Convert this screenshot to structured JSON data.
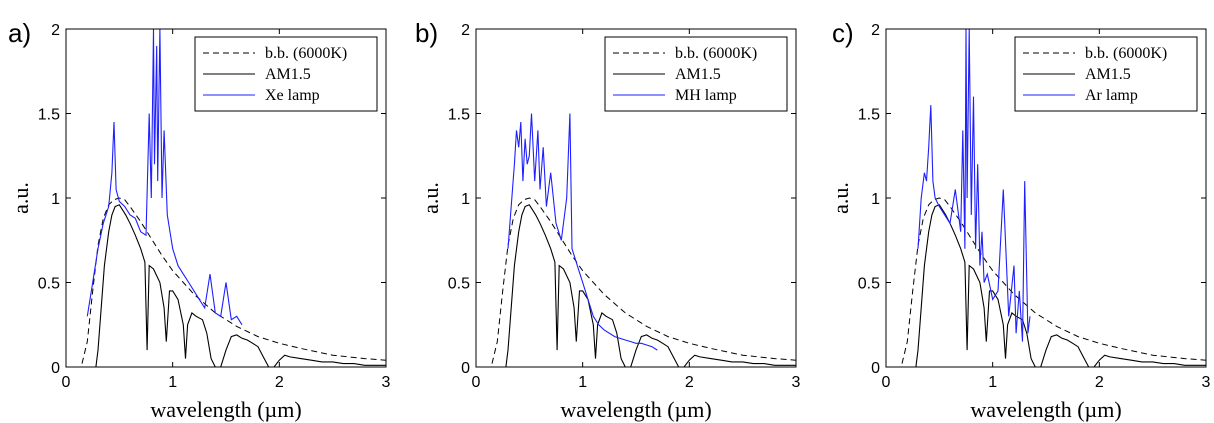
{
  "chart_data": [
    {
      "type": "line",
      "panel_label": "a)",
      "xlabel": "wavelength (µm)",
      "ylabel": "a.u.",
      "xlim": [
        0,
        3
      ],
      "ylim": [
        0,
        2
      ],
      "xticks": [
        "0",
        "1",
        "2",
        "3"
      ],
      "yticks": [
        "0",
        "0.5",
        "1",
        "1.5",
        "2"
      ],
      "grid": false,
      "legend_position": "top-right",
      "series": [
        {
          "name": "b.b. (6000K)",
          "color": "#000000",
          "style": "dashed",
          "x": [
            0.15,
            0.2,
            0.25,
            0.3,
            0.35,
            0.4,
            0.45,
            0.5,
            0.55,
            0.6,
            0.7,
            0.8,
            0.9,
            1.0,
            1.2,
            1.4,
            1.6,
            1.8,
            2.0,
            2.2,
            2.5,
            2.8,
            3.0
          ],
          "y": [
            0.02,
            0.15,
            0.45,
            0.72,
            0.88,
            0.96,
            0.99,
            1.0,
            0.99,
            0.95,
            0.86,
            0.76,
            0.66,
            0.57,
            0.43,
            0.32,
            0.24,
            0.18,
            0.14,
            0.11,
            0.07,
            0.05,
            0.04
          ]
        },
        {
          "name": "AM1.5",
          "color": "#000000",
          "style": "solid",
          "x": [
            0.28,
            0.3,
            0.33,
            0.36,
            0.4,
            0.43,
            0.46,
            0.5,
            0.53,
            0.56,
            0.6,
            0.65,
            0.7,
            0.74,
            0.76,
            0.78,
            0.82,
            0.88,
            0.92,
            0.94,
            0.97,
            1.0,
            1.05,
            1.1,
            1.12,
            1.14,
            1.18,
            1.22,
            1.28,
            1.32,
            1.36,
            1.4,
            1.45,
            1.5,
            1.55,
            1.6,
            1.65,
            1.7,
            1.75,
            1.8,
            1.85,
            1.9,
            1.95,
            2.0,
            2.05,
            2.1,
            2.2,
            2.3,
            2.4,
            2.5,
            2.6,
            2.7,
            2.8,
            2.9,
            3.0
          ],
          "y": [
            0.0,
            0.1,
            0.35,
            0.6,
            0.8,
            0.9,
            0.95,
            0.96,
            0.93,
            0.9,
            0.85,
            0.78,
            0.7,
            0.62,
            0.1,
            0.6,
            0.58,
            0.5,
            0.35,
            0.15,
            0.45,
            0.45,
            0.4,
            0.25,
            0.05,
            0.25,
            0.32,
            0.3,
            0.28,
            0.2,
            0.05,
            0.0,
            0.0,
            0.1,
            0.18,
            0.19,
            0.17,
            0.16,
            0.14,
            0.12,
            0.06,
            0.0,
            0.0,
            0.04,
            0.07,
            0.06,
            0.05,
            0.04,
            0.03,
            0.03,
            0.02,
            0.02,
            0.01,
            0.01,
            0.01
          ]
        },
        {
          "name": "Xe lamp",
          "color": "#1f1fff",
          "style": "solid",
          "x": [
            0.2,
            0.25,
            0.3,
            0.35,
            0.4,
            0.43,
            0.45,
            0.47,
            0.5,
            0.55,
            0.6,
            0.65,
            0.7,
            0.75,
            0.78,
            0.8,
            0.82,
            0.83,
            0.85,
            0.86,
            0.88,
            0.9,
            0.92,
            0.95,
            1.0,
            1.05,
            1.1,
            1.15,
            1.2,
            1.25,
            1.3,
            1.35,
            1.4,
            1.45,
            1.5,
            1.55,
            1.6,
            1.65
          ],
          "y": [
            0.3,
            0.5,
            0.7,
            0.85,
            0.95,
            1.15,
            1.45,
            1.05,
            0.98,
            0.95,
            0.9,
            0.88,
            0.8,
            0.78,
            1.5,
            1.0,
            2.0,
            1.2,
            1.9,
            1.1,
            2.0,
            1.0,
            1.4,
            0.9,
            0.7,
            0.6,
            0.55,
            0.5,
            0.45,
            0.4,
            0.35,
            0.55,
            0.32,
            0.3,
            0.5,
            0.28,
            0.3,
            0.25
          ]
        }
      ]
    },
    {
      "type": "line",
      "panel_label": "b)",
      "xlabel": "wavelength (µm)",
      "ylabel": "a.u.",
      "xlim": [
        0,
        3
      ],
      "ylim": [
        0,
        2
      ],
      "xticks": [
        "0",
        "1",
        "2",
        "3"
      ],
      "yticks": [
        "0",
        "0.5",
        "1",
        "1.5",
        "2"
      ],
      "grid": false,
      "legend_position": "top-right",
      "series": [
        {
          "name": "b.b. (6000K)",
          "color": "#000000",
          "style": "dashed",
          "x": [
            0.15,
            0.2,
            0.25,
            0.3,
            0.35,
            0.4,
            0.45,
            0.5,
            0.55,
            0.6,
            0.7,
            0.8,
            0.9,
            1.0,
            1.2,
            1.4,
            1.6,
            1.8,
            2.0,
            2.2,
            2.5,
            2.8,
            3.0
          ],
          "y": [
            0.02,
            0.15,
            0.45,
            0.72,
            0.88,
            0.96,
            0.99,
            1.0,
            0.99,
            0.95,
            0.86,
            0.76,
            0.66,
            0.57,
            0.43,
            0.32,
            0.24,
            0.18,
            0.14,
            0.11,
            0.07,
            0.05,
            0.04
          ]
        },
        {
          "name": "AM1.5",
          "color": "#000000",
          "style": "solid",
          "x": [
            0.28,
            0.3,
            0.33,
            0.36,
            0.4,
            0.43,
            0.46,
            0.5,
            0.53,
            0.56,
            0.6,
            0.65,
            0.7,
            0.74,
            0.76,
            0.78,
            0.82,
            0.88,
            0.92,
            0.94,
            0.97,
            1.0,
            1.05,
            1.1,
            1.12,
            1.14,
            1.18,
            1.22,
            1.28,
            1.32,
            1.36,
            1.4,
            1.45,
            1.5,
            1.55,
            1.6,
            1.65,
            1.7,
            1.75,
            1.8,
            1.85,
            1.9,
            1.95,
            2.0,
            2.05,
            2.1,
            2.2,
            2.3,
            2.4,
            2.5,
            2.6,
            2.7,
            2.8,
            2.9,
            3.0
          ],
          "y": [
            0.0,
            0.1,
            0.35,
            0.6,
            0.8,
            0.9,
            0.95,
            0.96,
            0.93,
            0.9,
            0.85,
            0.78,
            0.7,
            0.62,
            0.1,
            0.6,
            0.58,
            0.5,
            0.35,
            0.15,
            0.45,
            0.45,
            0.4,
            0.25,
            0.05,
            0.25,
            0.32,
            0.3,
            0.28,
            0.2,
            0.05,
            0.0,
            0.0,
            0.1,
            0.18,
            0.19,
            0.17,
            0.16,
            0.14,
            0.12,
            0.06,
            0.0,
            0.0,
            0.04,
            0.07,
            0.06,
            0.05,
            0.04,
            0.03,
            0.03,
            0.02,
            0.02,
            0.01,
            0.01,
            0.01
          ]
        },
        {
          "name": "MH lamp",
          "color": "#1f1fff",
          "style": "solid",
          "x": [
            0.3,
            0.33,
            0.36,
            0.38,
            0.4,
            0.42,
            0.44,
            0.46,
            0.48,
            0.5,
            0.52,
            0.55,
            0.58,
            0.6,
            0.63,
            0.66,
            0.7,
            0.75,
            0.8,
            0.85,
            0.88,
            0.9,
            0.95,
            1.0,
            1.05,
            1.1,
            1.15,
            1.2,
            1.3,
            1.4,
            1.45,
            1.5,
            1.55,
            1.6,
            1.65,
            1.7
          ],
          "y": [
            0.7,
            0.95,
            1.2,
            1.4,
            1.3,
            1.45,
            1.1,
            1.35,
            1.2,
            1.25,
            1.5,
            1.1,
            1.4,
            1.05,
            1.3,
            0.95,
            1.15,
            0.85,
            0.75,
            1.0,
            1.5,
            0.7,
            0.6,
            0.5,
            0.4,
            0.3,
            0.25,
            0.22,
            0.18,
            0.16,
            0.15,
            0.14,
            0.14,
            0.13,
            0.12,
            0.1
          ]
        }
      ]
    },
    {
      "type": "line",
      "panel_label": "c)",
      "xlabel": "wavelength (µm)",
      "ylabel": "a.u.",
      "xlim": [
        0,
        3
      ],
      "ylim": [
        0,
        2
      ],
      "xticks": [
        "0",
        "1",
        "2",
        "3"
      ],
      "yticks": [
        "0",
        "0.5",
        "1",
        "1.5",
        "2"
      ],
      "grid": false,
      "legend_position": "top-right",
      "series": [
        {
          "name": "b.b. (6000K)",
          "color": "#000000",
          "style": "dashed",
          "x": [
            0.15,
            0.2,
            0.25,
            0.3,
            0.35,
            0.4,
            0.45,
            0.5,
            0.55,
            0.6,
            0.7,
            0.8,
            0.9,
            1.0,
            1.2,
            1.4,
            1.6,
            1.8,
            2.0,
            2.2,
            2.5,
            2.8,
            3.0
          ],
          "y": [
            0.02,
            0.15,
            0.45,
            0.72,
            0.88,
            0.96,
            0.99,
            1.0,
            0.99,
            0.95,
            0.86,
            0.76,
            0.66,
            0.57,
            0.43,
            0.32,
            0.24,
            0.18,
            0.14,
            0.11,
            0.07,
            0.05,
            0.04
          ]
        },
        {
          "name": "AM1.5",
          "color": "#000000",
          "style": "solid",
          "x": [
            0.28,
            0.3,
            0.33,
            0.36,
            0.4,
            0.43,
            0.46,
            0.5,
            0.53,
            0.56,
            0.6,
            0.65,
            0.7,
            0.74,
            0.76,
            0.78,
            0.82,
            0.88,
            0.92,
            0.94,
            0.97,
            1.0,
            1.05,
            1.1,
            1.12,
            1.14,
            1.18,
            1.22,
            1.28,
            1.32,
            1.36,
            1.4,
            1.45,
            1.5,
            1.55,
            1.6,
            1.65,
            1.7,
            1.75,
            1.8,
            1.85,
            1.9,
            1.95,
            2.0,
            2.05,
            2.1,
            2.2,
            2.3,
            2.4,
            2.5,
            2.6,
            2.7,
            2.8,
            2.9,
            3.0
          ],
          "y": [
            0.0,
            0.1,
            0.35,
            0.6,
            0.8,
            0.9,
            0.95,
            0.96,
            0.93,
            0.9,
            0.85,
            0.78,
            0.7,
            0.62,
            0.1,
            0.6,
            0.58,
            0.5,
            0.35,
            0.15,
            0.45,
            0.45,
            0.4,
            0.25,
            0.05,
            0.25,
            0.32,
            0.3,
            0.28,
            0.2,
            0.05,
            0.0,
            0.0,
            0.1,
            0.18,
            0.19,
            0.17,
            0.16,
            0.14,
            0.12,
            0.06,
            0.0,
            0.0,
            0.04,
            0.07,
            0.06,
            0.05,
            0.04,
            0.03,
            0.03,
            0.02,
            0.02,
            0.01,
            0.01,
            0.01
          ]
        },
        {
          "name": "Ar lamp",
          "color": "#1f1fff",
          "style": "solid",
          "x": [
            0.3,
            0.33,
            0.36,
            0.38,
            0.4,
            0.42,
            0.44,
            0.46,
            0.5,
            0.55,
            0.6,
            0.65,
            0.7,
            0.72,
            0.74,
            0.75,
            0.76,
            0.78,
            0.8,
            0.82,
            0.84,
            0.86,
            0.88,
            0.9,
            0.92,
            0.95,
            1.0,
            1.05,
            1.1,
            1.15,
            1.2,
            1.22,
            1.25,
            1.28,
            1.3,
            1.33,
            1.35
          ],
          "y": [
            0.7,
            1.0,
            1.15,
            1.1,
            1.3,
            1.55,
            1.1,
            1.0,
            0.95,
            0.9,
            0.85,
            1.05,
            0.8,
            1.4,
            0.7,
            2.0,
            1.0,
            2.0,
            0.9,
            1.6,
            0.7,
            1.2,
            0.6,
            0.8,
            0.5,
            0.55,
            0.4,
            0.45,
            1.05,
            0.3,
            0.6,
            0.2,
            0.45,
            0.15,
            1.1,
            0.2,
            0.3
          ]
        }
      ]
    }
  ]
}
